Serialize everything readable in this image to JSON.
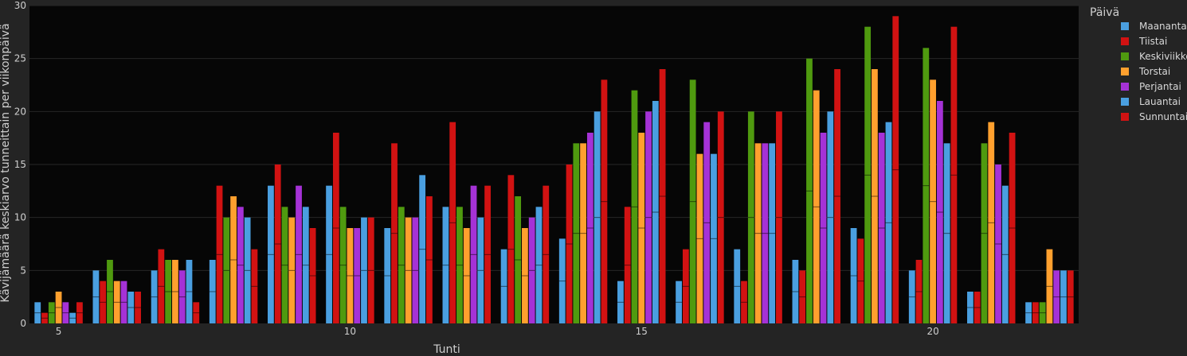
{
  "chart_data": {
    "type": "bar",
    "xlabel": "Tunti",
    "ylabel": "Kävijämäärä keskiarvo tunneittain per viikonpäivä",
    "x_ticks": [
      5,
      10,
      15,
      20
    ],
    "y_ticks": [
      0,
      5,
      10,
      15,
      20,
      25,
      30
    ],
    "ylim": [
      0,
      30
    ],
    "xlim": [
      4.5,
      22.5
    ],
    "grid": true,
    "legend_title": "Päivä",
    "legend_position": "right",
    "categories": [
      5,
      6,
      7,
      8,
      9,
      10,
      11,
      12,
      13,
      14,
      15,
      16,
      17,
      18,
      19,
      20,
      21,
      22
    ],
    "series": [
      {
        "name": "Maanantai",
        "color": "#4a9fe0",
        "values": [
          2,
          5,
          5,
          6,
          13,
          13,
          9,
          11,
          7,
          8,
          4,
          4,
          7,
          6,
          9,
          5,
          3,
          2
        ]
      },
      {
        "name": "Tiistai",
        "color": "#d11212",
        "values": [
          1,
          4,
          7,
          13,
          15,
          18,
          17,
          19,
          14,
          15,
          11,
          7,
          4,
          5,
          8,
          6,
          3,
          2
        ]
      },
      {
        "name": "Keskiviikko",
        "color": "#4f9a0f",
        "values": [
          2,
          6,
          6,
          10,
          11,
          11,
          11,
          11,
          12,
          17,
          22,
          23,
          20,
          25,
          28,
          26,
          17,
          2
        ]
      },
      {
        "name": "Torstai",
        "color": "#ffa02e",
        "values": [
          3,
          4,
          6,
          12,
          10,
          9,
          10,
          9,
          9,
          17,
          18,
          16,
          17,
          22,
          24,
          23,
          19,
          7
        ]
      },
      {
        "name": "Perjantai",
        "color": "#a532d6",
        "values": [
          2,
          4,
          5,
          11,
          13,
          9,
          10,
          13,
          10,
          18,
          20,
          19,
          17,
          18,
          18,
          21,
          15,
          5
        ]
      },
      {
        "name": "Lauantai",
        "color": "#4a9fe0",
        "values": [
          1,
          3,
          6,
          10,
          11,
          10,
          14,
          10,
          11,
          20,
          21,
          16,
          17,
          20,
          19,
          17,
          13,
          5
        ]
      },
      {
        "name": "Sunnuntai",
        "color": "#d11212",
        "values": [
          2,
          3,
          2,
          7,
          9,
          10,
          12,
          13,
          13,
          23,
          24,
          20,
          20,
          24,
          29,
          28,
          18,
          5
        ]
      }
    ]
  }
}
